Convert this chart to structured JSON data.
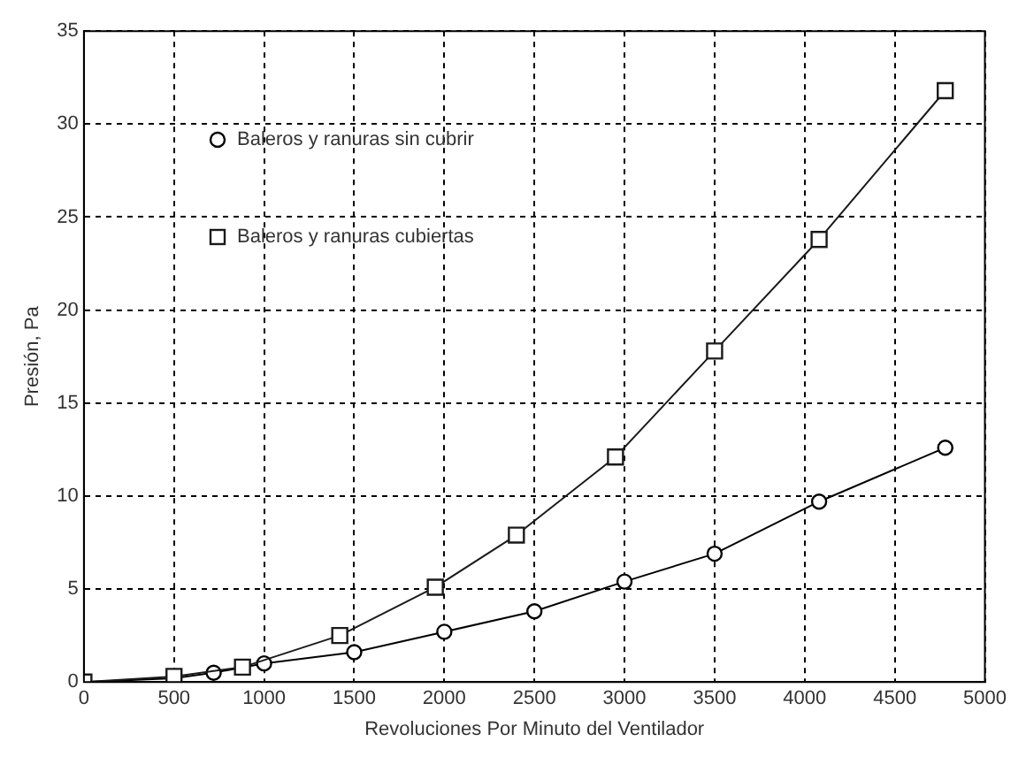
{
  "chart_data": {
    "type": "line",
    "xlabel": "Revoluciones Por Minuto del Ventilador",
    "ylabel": "Presión, Pa",
    "xlim": [
      0,
      5000
    ],
    "xticks": [
      0,
      500,
      1000,
      1500,
      2000,
      2500,
      3000,
      3500,
      4000,
      4500,
      5000
    ],
    "ylim": [
      0,
      35
    ],
    "yticks": [
      0,
      5,
      10,
      15,
      20,
      25,
      30,
      35
    ],
    "grid": true,
    "legend": "top left",
    "line_style": "solid",
    "series": [
      {
        "name": "Baleros y ranuras sin cubrir",
        "color": "#000000",
        "marker": "circle",
        "x": [
          0,
          500,
          720,
          1000,
          1500,
          2000,
          2500,
          3000,
          3500,
          4080,
          4780
        ],
        "values": [
          0,
          0.2,
          0.5,
          1.0,
          1.6,
          2.7,
          3.8,
          5.4,
          6.9,
          9.7,
          12.6
        ]
      },
      {
        "name": "Baleros y ranuras cubiertas",
        "color": "#1a1a1a",
        "marker": "square",
        "x": [
          0,
          500,
          880,
          1420,
          1950,
          2400,
          2950,
          3500,
          4080,
          4780
        ],
        "values": [
          0,
          0.3,
          0.8,
          2.5,
          5.1,
          7.9,
          12.1,
          17.8,
          23.8,
          31.8
        ]
      }
    ]
  }
}
